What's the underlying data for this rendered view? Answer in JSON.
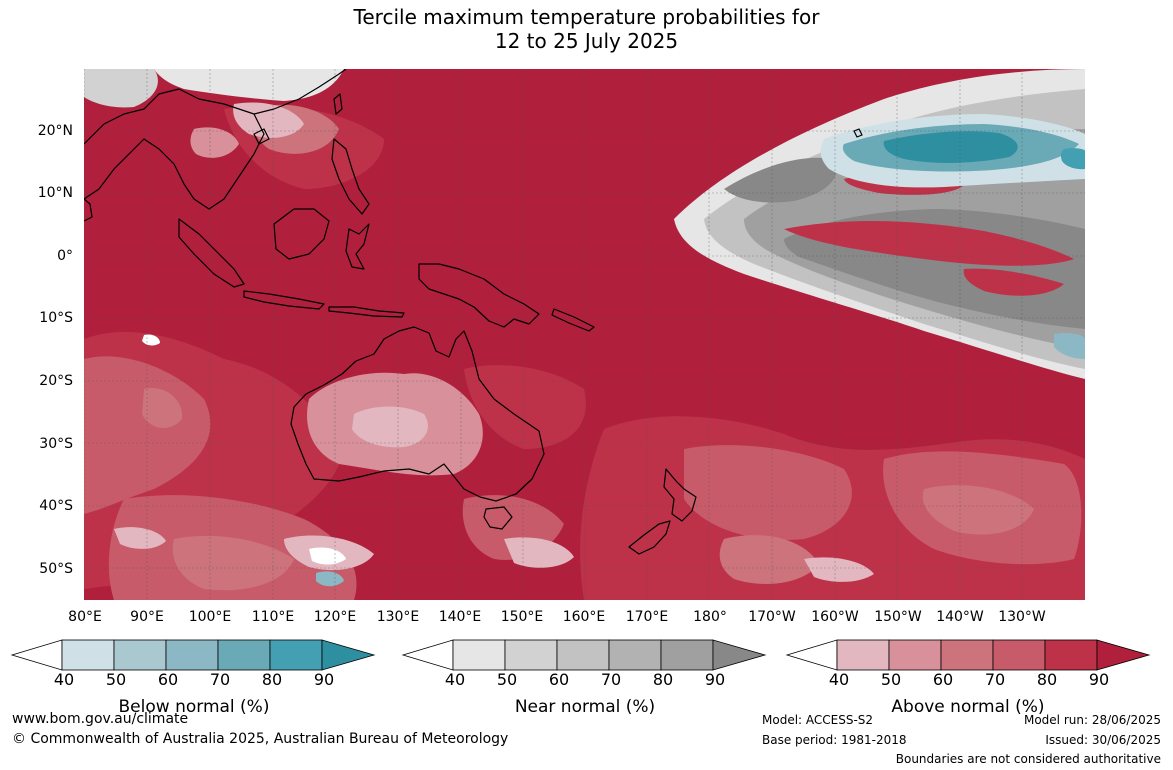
{
  "title": {
    "line1": "Tercile maximum temperature probabilities for",
    "line2": "12 to 25 July 2025"
  },
  "lat_labels": [
    "20°N",
    "10°N",
    "0°",
    "10°S",
    "20°S",
    "30°S",
    "40°S",
    "50°S"
  ],
  "lon_labels": [
    "80°E",
    "90°E",
    "100°E",
    "110°E",
    "120°E",
    "130°E",
    "140°E",
    "150°E",
    "160°E",
    "170°E",
    "180°",
    "170°W",
    "160°W",
    "150°W",
    "140°W",
    "130°W"
  ],
  "colorbars": [
    {
      "title": "Below normal (%)",
      "ticks": [
        "40",
        "50",
        "60",
        "70",
        "80",
        "90"
      ],
      "colors": [
        "#ffffff",
        "#cfe1e6",
        "#a9c8cf",
        "#8bb8c4",
        "#6aaab7",
        "#42a0b2",
        "#2e8fa0"
      ]
    },
    {
      "title": "Near normal (%)",
      "ticks": [
        "40",
        "50",
        "60",
        "70",
        "80",
        "90"
      ],
      "colors": [
        "#ffffff",
        "#e6e6e6",
        "#d2d2d2",
        "#c2c2c2",
        "#b2b2b2",
        "#a0a0a0",
        "#888888"
      ]
    },
    {
      "title": "Above normal (%)",
      "ticks": [
        "40",
        "50",
        "60",
        "70",
        "80",
        "90"
      ],
      "colors": [
        "#ffffff",
        "#e3b7c0",
        "#d8909b",
        "#cc737c",
        "#c85b6a",
        "#bd3249",
        "#b01f3c"
      ]
    }
  ],
  "footer": {
    "website": "www.bom.gov.au/climate",
    "copyright": "© Commonwealth of Australia 2025, Australian Bureau of Meteorology",
    "model": "Model: ACCESS-S2",
    "base_period": "Base period: 1981-2018",
    "model_run": "Model run: 28/06/2025",
    "issued": "Issued: 30/06/2025",
    "disclaimer": "Boundaries are not considered authoritative"
  }
}
